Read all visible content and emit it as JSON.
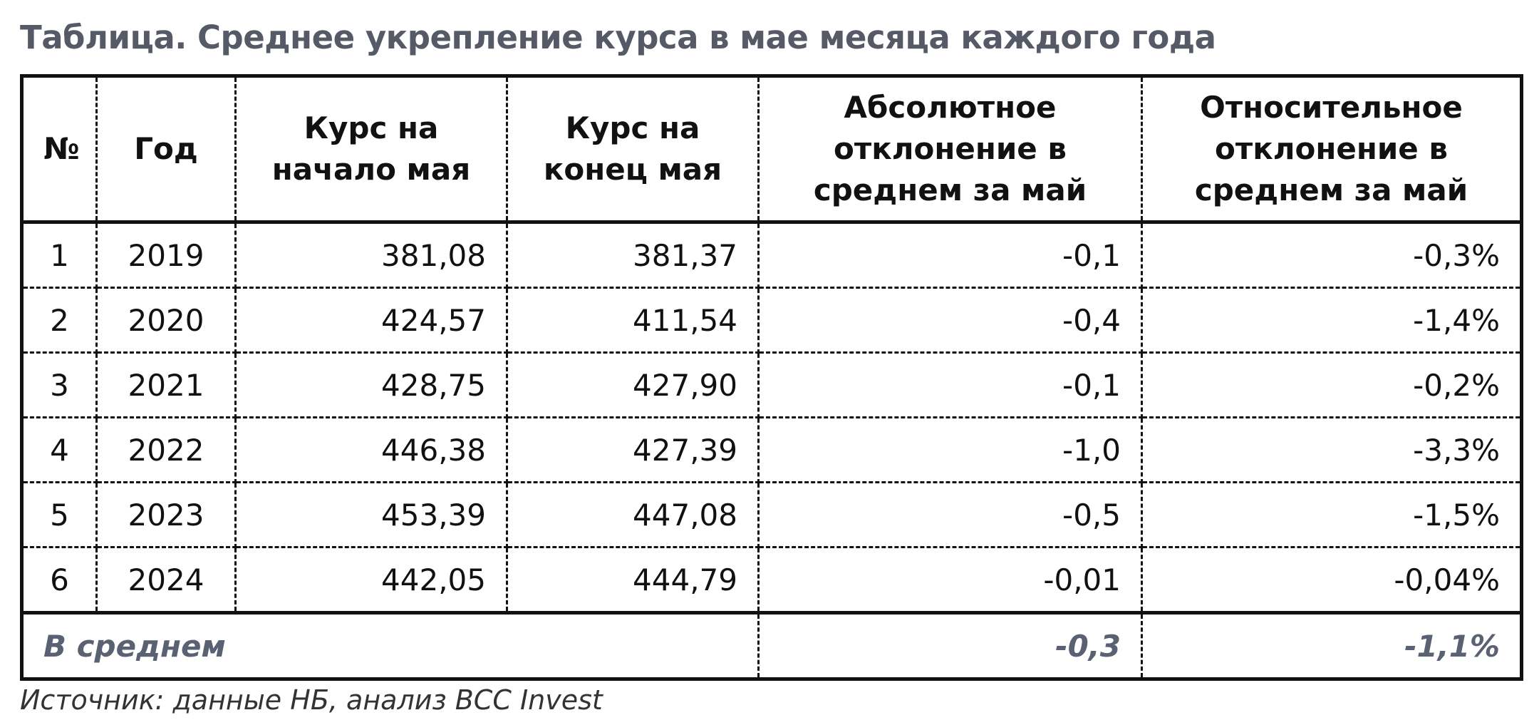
{
  "title": "Таблица. Среднее укрепление курса в мае месяца каждого года",
  "table": {
    "headers": [
      "№",
      "Год",
      "Курс на начало мая",
      "Курс на конец мая",
      "Абсолютное отклонение в среднем за май",
      "Относительное отклонение в среднем за май"
    ],
    "rows": [
      [
        "1",
        "2019",
        "381,08",
        "381,37",
        "-0,1",
        "-0,3%"
      ],
      [
        "2",
        "2020",
        "424,57",
        "411,54",
        "-0,4",
        "-1,4%"
      ],
      [
        "3",
        "2021",
        "428,75",
        "427,90",
        "-0,1",
        "-0,2%"
      ],
      [
        "4",
        "2022",
        "446,38",
        "427,39",
        "-1,0",
        "-3,3%"
      ],
      [
        "5",
        "2023",
        "453,39",
        "447,08",
        "-0,5",
        "-1,5%"
      ],
      [
        "6",
        "2024",
        "442,05",
        "444,79",
        "-0,01",
        "-0,04%"
      ]
    ],
    "footer": {
      "label": "В среднем",
      "values": [
        "-0,3",
        "-1,1%"
      ]
    }
  },
  "source": "Источник: данные НБ, анализ BCC Invest"
}
